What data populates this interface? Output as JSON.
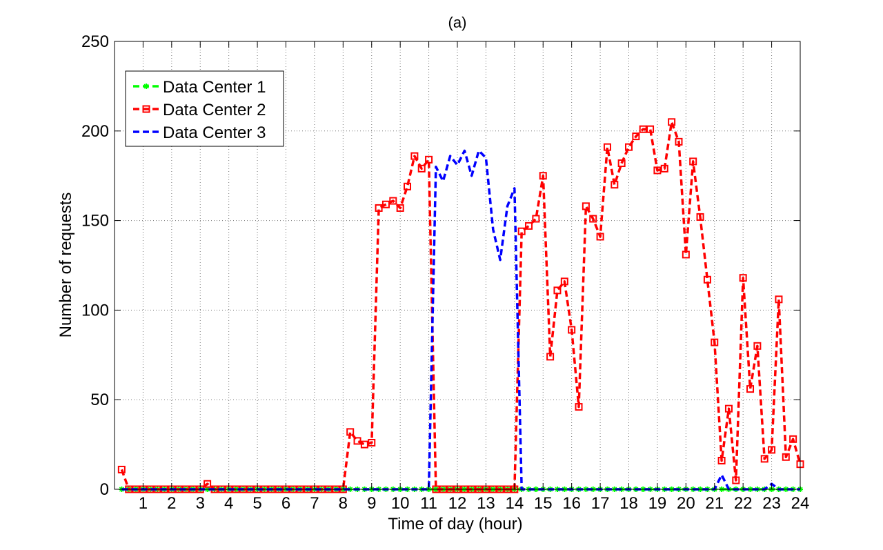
{
  "chart_data": {
    "type": "line",
    "title": "(a)",
    "xlabel": "Time of day (hour)",
    "ylabel": "Number of requests",
    "xlim": [
      0,
      24
    ],
    "ylim": [
      0,
      250
    ],
    "x_step": 0.25,
    "xticks": [
      1,
      2,
      3,
      4,
      5,
      6,
      7,
      8,
      9,
      10,
      11,
      12,
      13,
      14,
      15,
      16,
      17,
      18,
      19,
      20,
      21,
      22,
      23,
      24
    ],
    "xtick_labels": [
      "1",
      "2",
      "3",
      "4",
      "5",
      "6",
      "7",
      "8",
      "9",
      "10",
      "11",
      "12",
      "13",
      "14",
      "15",
      "16",
      "17",
      "18",
      "19",
      "20",
      "21",
      "22",
      "23",
      "24"
    ],
    "yticks": [
      0,
      50,
      100,
      150,
      200,
      250
    ],
    "ytick_labels": [
      "0",
      "50",
      "100",
      "150",
      "200",
      "250"
    ],
    "grid": true,
    "legend_position": "top-left",
    "series": [
      {
        "name": "Data Center 1",
        "color": "#00ff00",
        "marker": "star",
        "values": [
          0,
          0,
          0,
          0,
          0,
          0,
          0,
          0,
          0,
          0,
          0,
          0,
          0,
          0,
          0,
          0,
          0,
          0,
          0,
          0,
          0,
          0,
          0,
          0,
          0,
          0,
          0,
          0,
          0,
          0,
          0,
          0,
          0,
          0,
          0,
          0,
          0,
          0,
          0,
          0,
          0,
          0,
          0,
          0,
          0,
          0,
          0,
          0,
          0,
          0,
          0,
          0,
          0,
          0,
          0,
          0,
          0,
          0,
          0,
          0,
          0,
          0,
          0,
          0,
          0,
          0,
          0,
          0,
          0,
          0,
          0,
          0,
          0,
          0,
          0,
          0,
          0,
          0,
          0,
          0,
          0,
          0,
          0,
          0,
          0,
          0,
          0,
          0,
          0,
          0,
          0,
          0,
          0,
          0,
          0,
          0
        ]
      },
      {
        "name": "Data Center 2",
        "color": "#ff0000",
        "marker": "square",
        "values": [
          11,
          0,
          0,
          0,
          0,
          0,
          0,
          0,
          0,
          0,
          0,
          0,
          3,
          0,
          0,
          0,
          0,
          0,
          0,
          0,
          0,
          0,
          0,
          0,
          0,
          0,
          0,
          0,
          0,
          0,
          0,
          0,
          32,
          27,
          25,
          26,
          157,
          159,
          161,
          157,
          169,
          186,
          179,
          184,
          0,
          0,
          0,
          0,
          0,
          0,
          0,
          0,
          0,
          0,
          0,
          0,
          144,
          147,
          151,
          175,
          74,
          111,
          116,
          89,
          46,
          158,
          151,
          141,
          191,
          170,
          182,
          191,
          197,
          201,
          201,
          178,
          179,
          205,
          194,
          131,
          183,
          152,
          117,
          82,
          16,
          45,
          5,
          118,
          56,
          80,
          17,
          22,
          106,
          18,
          28,
          14
        ]
      },
      {
        "name": "Data Center 3",
        "color": "#0000ff",
        "marker": "none",
        "values": [
          0,
          0,
          0,
          0,
          0,
          0,
          0,
          0,
          0,
          0,
          0,
          0,
          0,
          0,
          0,
          0,
          0,
          0,
          0,
          0,
          0,
          0,
          0,
          0,
          0,
          0,
          0,
          0,
          0,
          0,
          0,
          0,
          0,
          0,
          0,
          0,
          0,
          0,
          0,
          0,
          0,
          0,
          0,
          0,
          180,
          172,
          186,
          181,
          189,
          175,
          189,
          185,
          145,
          128,
          158,
          168,
          0,
          0,
          0,
          0,
          0,
          0,
          0,
          0,
          0,
          0,
          0,
          0,
          0,
          0,
          0,
          0,
          0,
          0,
          0,
          0,
          0,
          0,
          0,
          0,
          0,
          0,
          0,
          0,
          8,
          0,
          0,
          0,
          0,
          0,
          0,
          3,
          0,
          0,
          0,
          0
        ]
      }
    ]
  }
}
